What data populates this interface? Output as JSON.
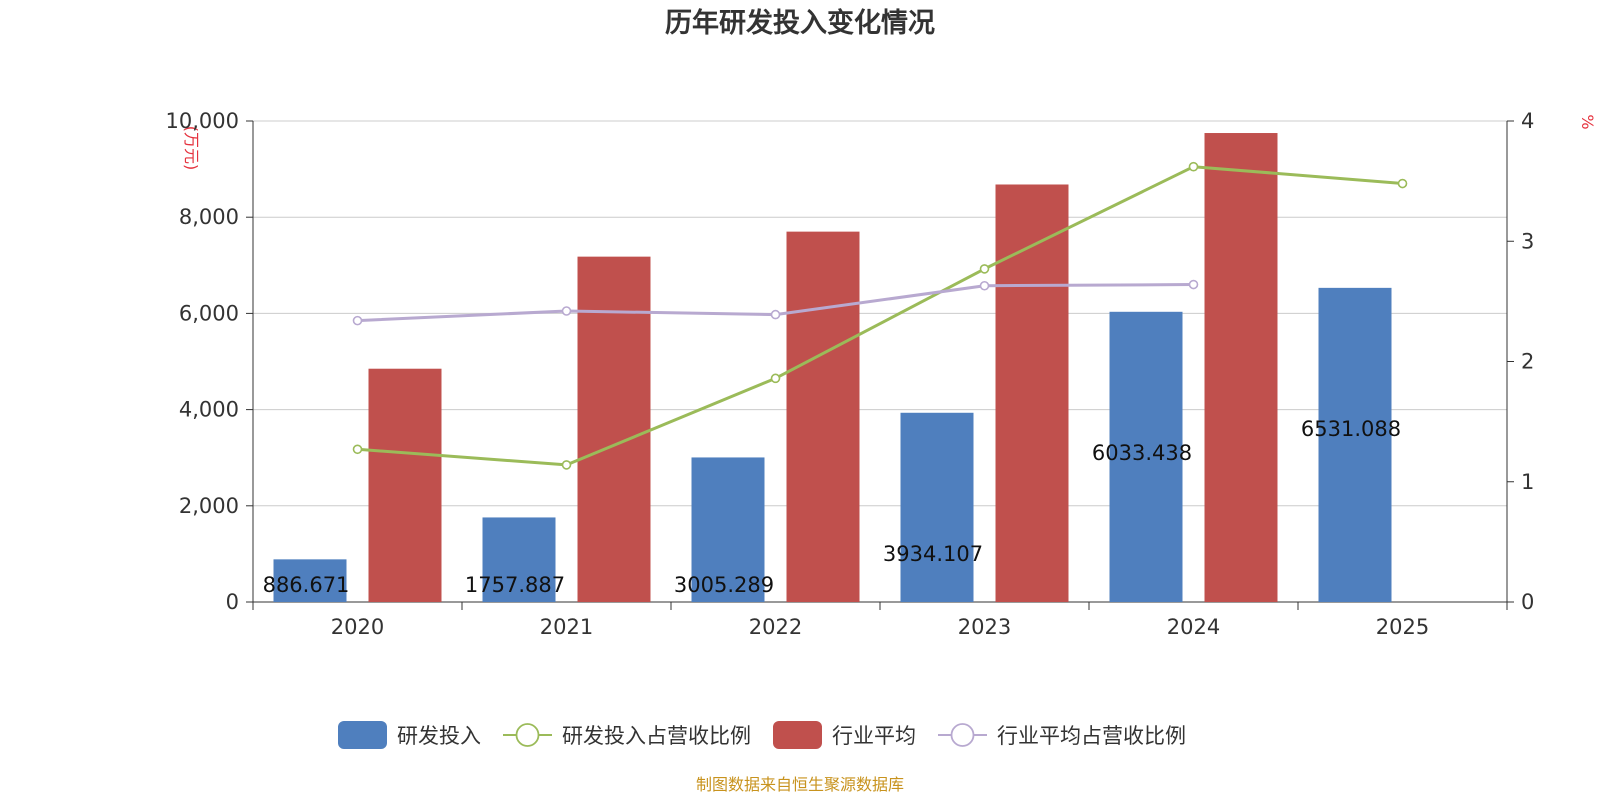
{
  "chart_data": {
    "type": "bar",
    "title": "历年研发投入变化情况",
    "categories": [
      "2020",
      "2021",
      "2022",
      "2023",
      "2024",
      "2025"
    ],
    "y_left": {
      "unit": "(万元)",
      "ticks": [
        "0",
        "2,000",
        "4,000",
        "6,000",
        "8,000",
        "10,000"
      ],
      "range": [
        0,
        10000
      ]
    },
    "y_right": {
      "unit": "%",
      "ticks": [
        "0",
        "1",
        "2",
        "3",
        "4"
      ],
      "range": [
        0,
        4
      ]
    },
    "series": [
      {
        "name": "研发投入",
        "kind": "bar",
        "axis": "left",
        "color": "#4f7fbe",
        "values": [
          886.671,
          1757.887,
          3005.289,
          3934.107,
          6033.438,
          6531.088
        ],
        "labels": [
          "886.671",
          "1757.887",
          "3005.289",
          "3934.107",
          "6033.438",
          "6531.088"
        ]
      },
      {
        "name": "研发投入占营收比例",
        "kind": "line",
        "axis": "right",
        "color": "#9bbb59",
        "values": [
          1.27,
          1.14,
          1.86,
          2.77,
          3.62,
          3.48
        ]
      },
      {
        "name": "行业平均",
        "kind": "bar",
        "axis": "left",
        "color": "#c0504d",
        "values": [
          4850,
          7180,
          7700,
          8680,
          9750,
          null
        ]
      },
      {
        "name": "行业平均占营收比例",
        "kind": "line",
        "axis": "right",
        "color": "#b8a9d0",
        "values": [
          2.34,
          2.42,
          2.39,
          2.63,
          2.64,
          null
        ]
      }
    ],
    "source": "制图数据来自恒生聚源数据库"
  }
}
